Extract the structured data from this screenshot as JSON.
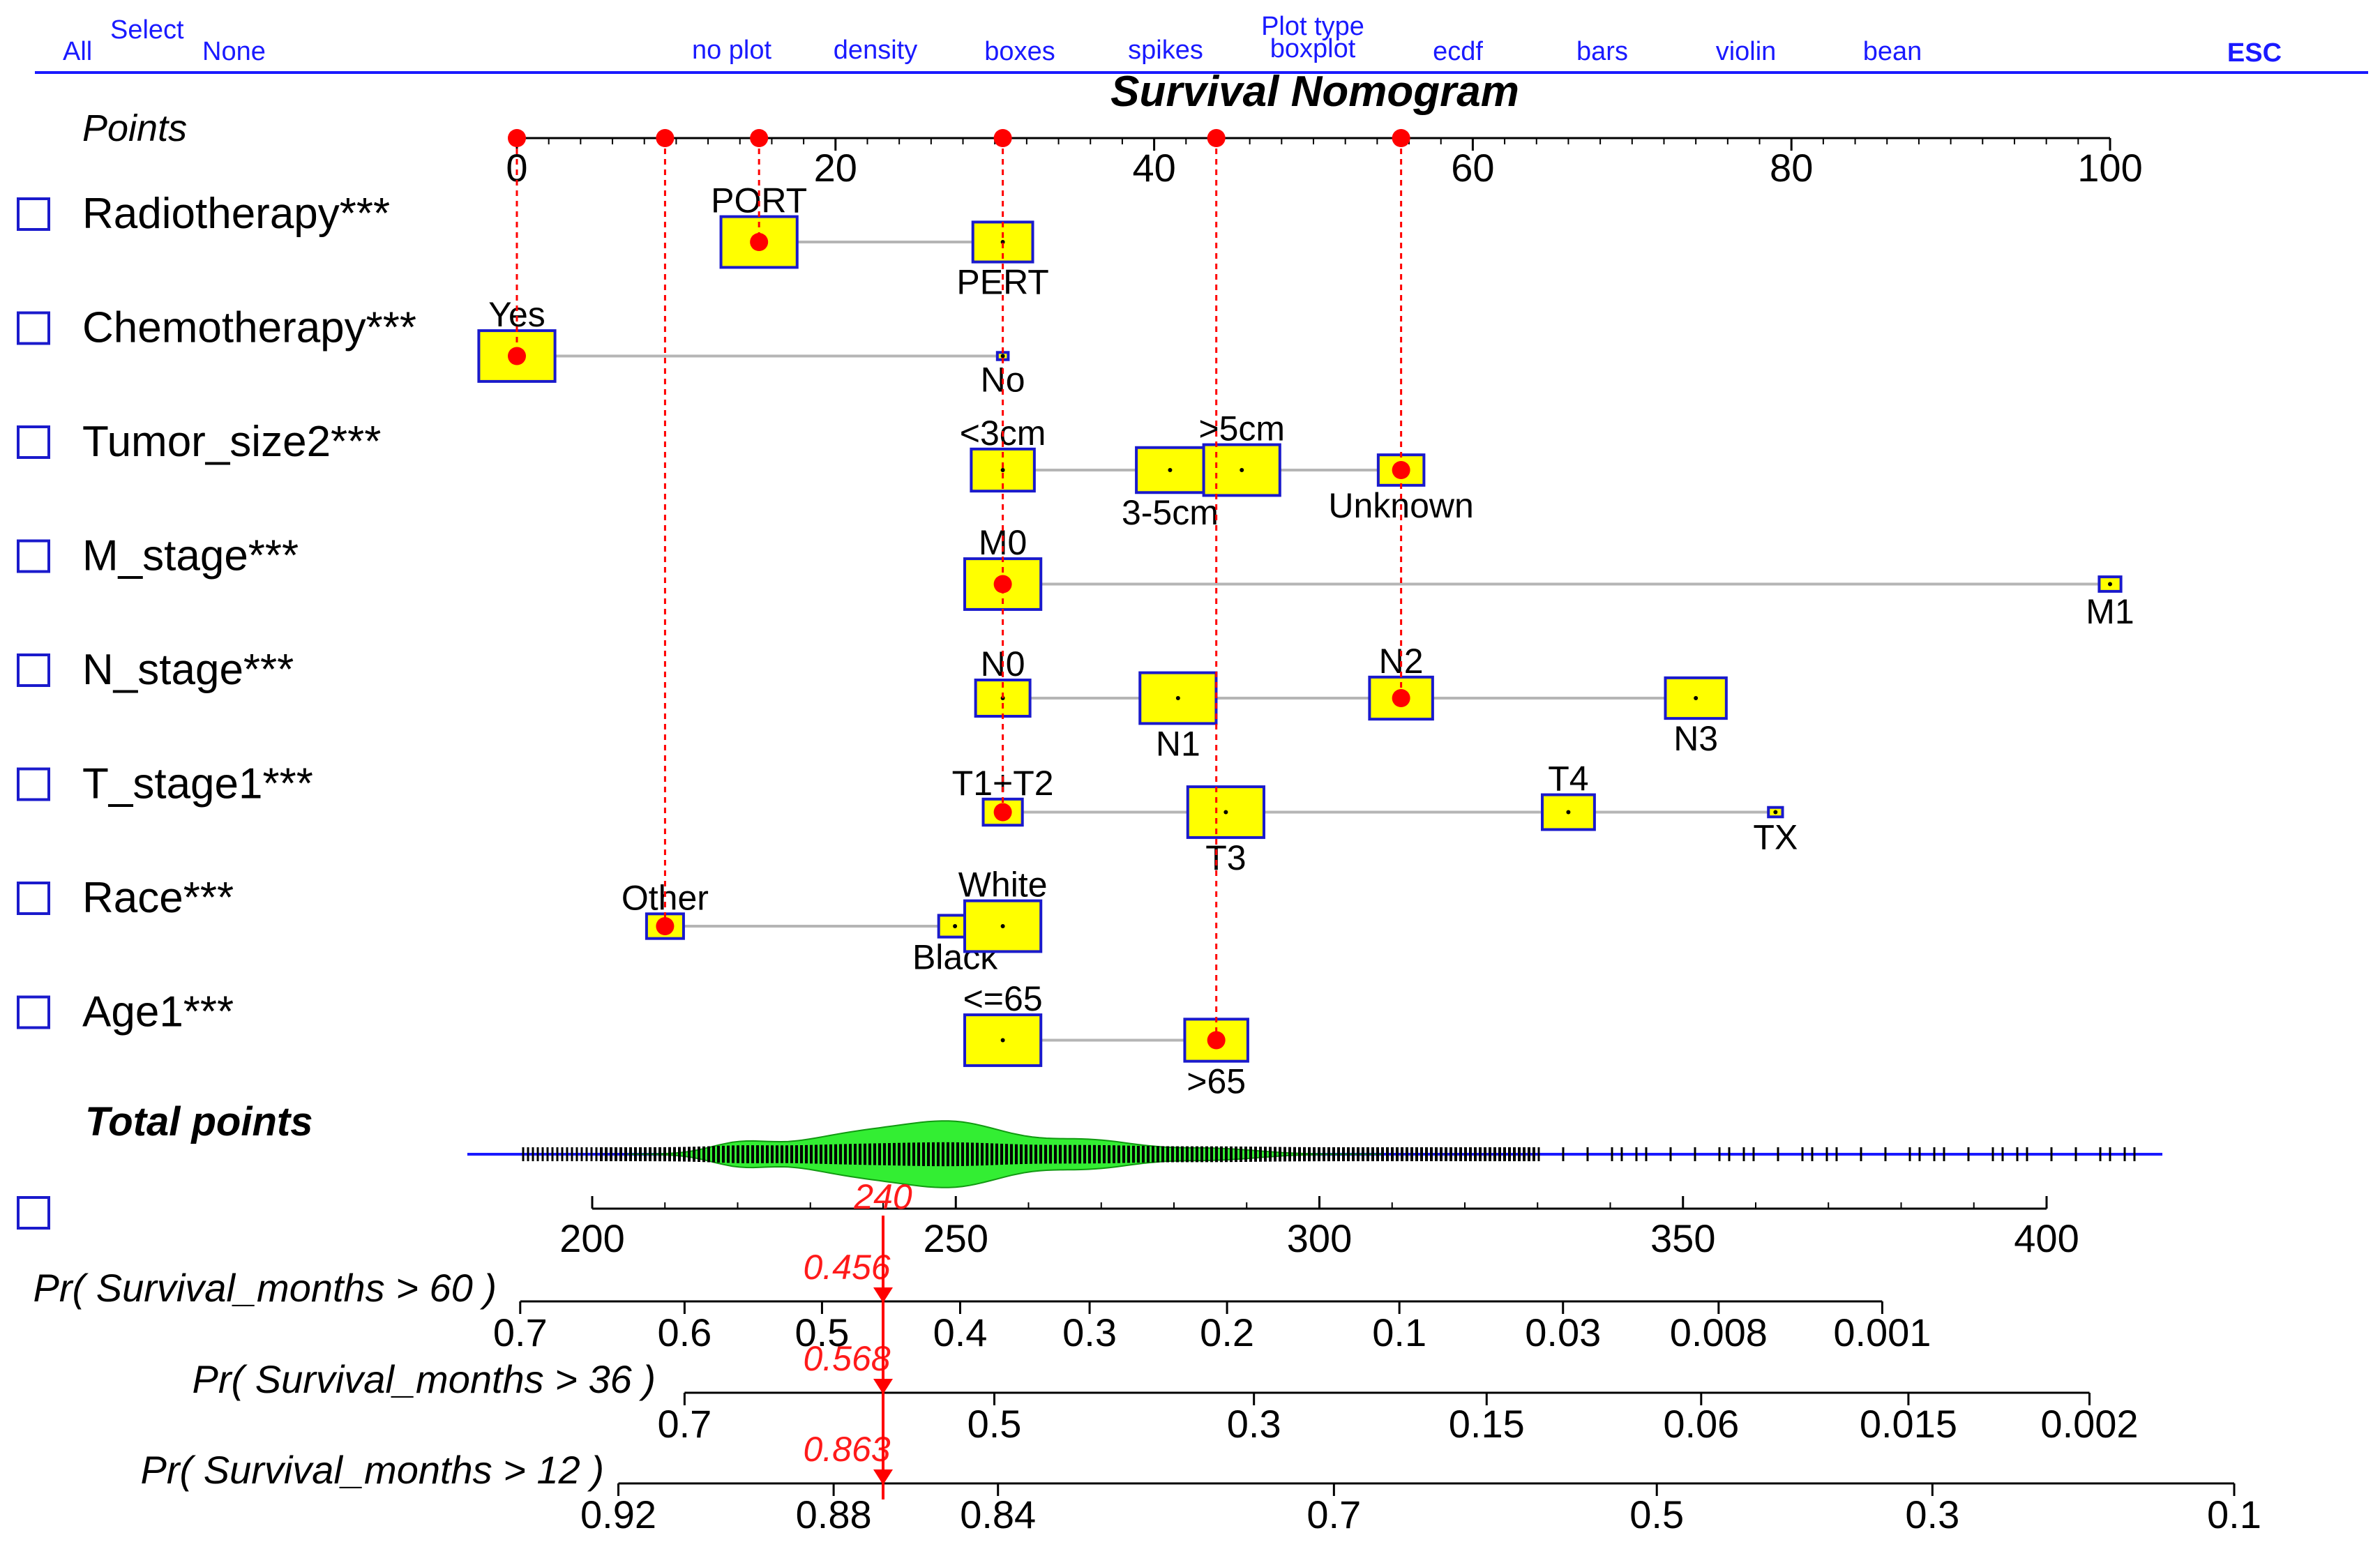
{
  "menu": {
    "select_label": "Select",
    "all_label": "All",
    "none_label": "None",
    "plot_type_label": "Plot type",
    "esc_label": "ESC",
    "plot_types": [
      "no plot",
      "density",
      "boxes",
      "spikes",
      "boxplot",
      "ecdf",
      "bars",
      "violin",
      "bean"
    ]
  },
  "chart_data": {
    "type": "nomogram",
    "title": "Survival Nomogram",
    "points_label": "Points",
    "points_ticks": [
      0,
      20,
      40,
      60,
      80,
      100
    ],
    "points_range": [
      0,
      100
    ],
    "selected_points": [
      0,
      9.3,
      15.2,
      30.5,
      43.9,
      55.5
    ],
    "variables": [
      {
        "name": "Radiotherapy***",
        "levels": [
          {
            "label": "PORT",
            "points": 15.2,
            "weight": 0.7,
            "label_pos": "above"
          },
          {
            "label": "PERT",
            "points": 30.5,
            "weight": 0.55,
            "label_pos": "below"
          }
        ],
        "selected": 15.2
      },
      {
        "name": "Chemotherapy***",
        "levels": [
          {
            "label": "Yes",
            "points": 0,
            "weight": 0.7,
            "label_pos": "above"
          },
          {
            "label": "No",
            "points": 30.5,
            "weight": 0.1,
            "label_pos": "below"
          }
        ],
        "selected": 0
      },
      {
        "name": "Tumor_size2***",
        "levels": [
          {
            "label": "<3cm",
            "points": 30.5,
            "weight": 0.58,
            "label_pos": "above"
          },
          {
            "label": "3-5cm",
            "points": 41,
            "weight": 0.62,
            "label_pos": "below"
          },
          {
            "label": ">5cm",
            "points": 45.5,
            "weight": 0.7,
            "label_pos": "above"
          },
          {
            "label": "Unknown",
            "points": 55.5,
            "weight": 0.42,
            "label_pos": "below"
          }
        ],
        "selected": 55.5
      },
      {
        "name": "M_stage***",
        "levels": [
          {
            "label": "M0",
            "points": 30.5,
            "weight": 0.7,
            "label_pos": "above"
          },
          {
            "label": "M1",
            "points": 100,
            "weight": 0.2,
            "label_pos": "below"
          }
        ],
        "selected": 30.5
      },
      {
        "name": "N_stage***",
        "levels": [
          {
            "label": "N0",
            "points": 30.5,
            "weight": 0.5,
            "label_pos": "above"
          },
          {
            "label": "N1",
            "points": 41.5,
            "weight": 0.7,
            "label_pos": "below"
          },
          {
            "label": "N2",
            "points": 55.5,
            "weight": 0.58,
            "label_pos": "above"
          },
          {
            "label": "N3",
            "points": 74,
            "weight": 0.56,
            "label_pos": "below"
          }
        ],
        "selected": 55.5
      },
      {
        "name": "T_stage1***",
        "levels": [
          {
            "label": "T1+T2",
            "points": 30.5,
            "weight": 0.36,
            "label_pos": "above"
          },
          {
            "label": "T3",
            "points": 44.5,
            "weight": 0.7,
            "label_pos": "below"
          },
          {
            "label": "T4",
            "points": 66,
            "weight": 0.48,
            "label_pos": "above"
          },
          {
            "label": "TX",
            "points": 79,
            "weight": 0.13,
            "label_pos": "below"
          }
        ],
        "selected": 30.5
      },
      {
        "name": "Race***",
        "levels": [
          {
            "label": "Other",
            "points": 9.3,
            "weight": 0.34,
            "label_pos": "above"
          },
          {
            "label": "Black",
            "points": 27.5,
            "weight": 0.3,
            "label_pos": "below"
          },
          {
            "label": "White",
            "points": 30.5,
            "weight": 0.7,
            "label_pos": "above"
          }
        ],
        "selected": 9.3
      },
      {
        "name": "Age1***",
        "levels": [
          {
            "label": "<=65",
            "points": 30.5,
            "weight": 0.7,
            "label_pos": "above"
          },
          {
            "label": ">65",
            "points": 43.9,
            "weight": 0.58,
            "label_pos": "below"
          }
        ],
        "selected": 43.9
      }
    ],
    "total_points": {
      "label": "Total points",
      "ticks": [
        200,
        250,
        300,
        350,
        400
      ],
      "range": [
        200,
        400
      ],
      "value": 240,
      "value_label": "240"
    },
    "probabilities": [
      {
        "label": "Pr( Survival_months > 60 )",
        "value": 0.456,
        "value_label": "0.456",
        "ticks": [
          {
            "label": "0.7",
            "total": 190.1
          },
          {
            "label": "0.6",
            "total": 212.7
          },
          {
            "label": "0.5",
            "total": 231.6
          },
          {
            "label": "0.4",
            "total": 250.6
          },
          {
            "label": "0.3",
            "total": 268.4
          },
          {
            "label": "0.2",
            "total": 287.3
          },
          {
            "label": "0.1",
            "total": 311.0
          },
          {
            "label": "0.03",
            "total": 333.5
          },
          {
            "label": "0.008",
            "total": 354.9
          },
          {
            "label": "0.001",
            "total": 377.4
          }
        ]
      },
      {
        "label": "Pr( Survival_months > 36 )",
        "value": 0.568,
        "value_label": "0.568",
        "ticks": [
          {
            "label": "0.7",
            "total": 212.7
          },
          {
            "label": "0.5",
            "total": 255.3
          },
          {
            "label": "0.3",
            "total": 291.0
          },
          {
            "label": "0.15",
            "total": 323.0
          },
          {
            "label": "0.06",
            "total": 352.5
          },
          {
            "label": "0.015",
            "total": 381.0
          },
          {
            "label": "0.002",
            "total": 405.9
          }
        ]
      },
      {
        "label": "Pr( Survival_months > 12 )",
        "value": 0.863,
        "value_label": "0.863",
        "ticks": [
          {
            "label": "0.92",
            "total": 203.6
          },
          {
            "label": "0.88",
            "total": 233.2
          },
          {
            "label": "0.84",
            "total": 255.8
          },
          {
            "label": "0.7",
            "total": 302.0
          },
          {
            "label": "0.5",
            "total": 346.4
          },
          {
            "label": "0.3",
            "total": 384.3
          },
          {
            "label": "0.1",
            "total": 425.8
          }
        ]
      }
    ],
    "colors": {
      "box_fill": "#ffff00",
      "box_stroke": "#1a1acc",
      "marker": "#ff0000",
      "density": "#33ee33",
      "menu": "#1a1aff"
    }
  }
}
